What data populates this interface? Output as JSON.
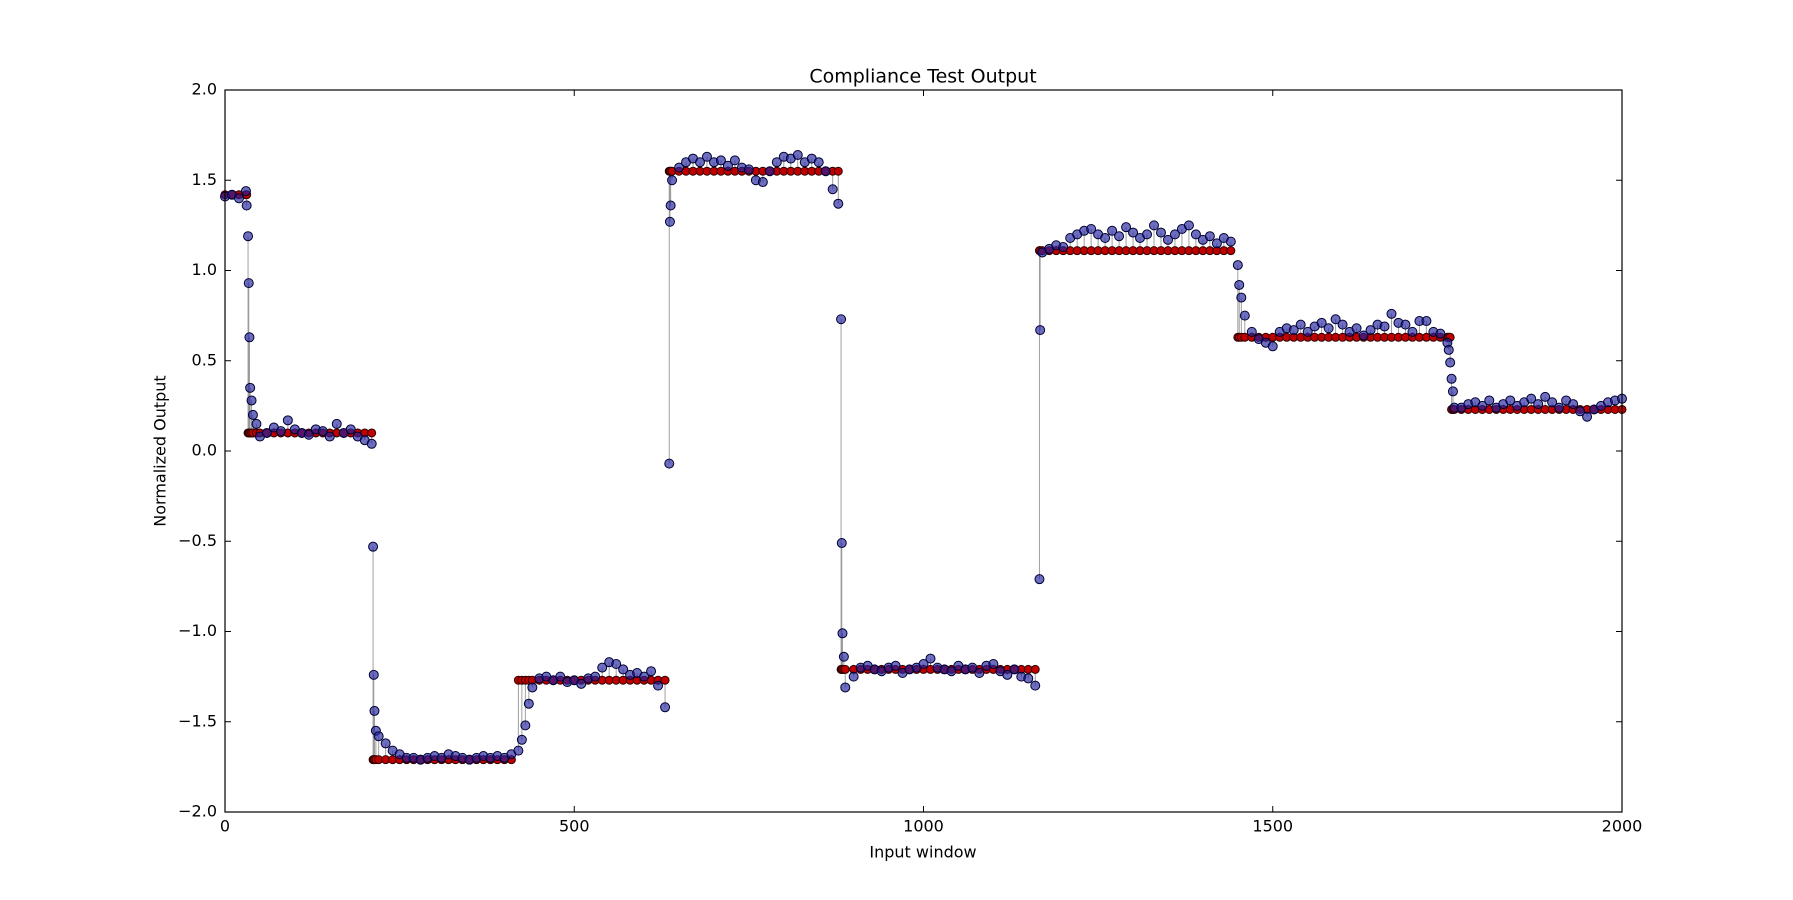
{
  "chart_data": {
    "type": "stem-scatter",
    "title": "Compliance Test Output",
    "x_label": "Input window",
    "y_label": "Normalized Output",
    "xlim": [
      0,
      2000
    ],
    "ylim": [
      -2,
      2
    ],
    "xticks": [
      0,
      500,
      1000,
      1500,
      2000
    ],
    "yticks": [
      {
        "value": -2,
        "label": "−2.0"
      },
      {
        "value": -1.5,
        "label": "−1.5"
      },
      {
        "value": -1,
        "label": "−1.0"
      },
      {
        "value": -0.5,
        "label": "−0.5"
      },
      {
        "value": 0,
        "label": "0.0"
      },
      {
        "value": 0.5,
        "label": "0.5"
      },
      {
        "value": 1,
        "label": "1.0"
      },
      {
        "value": 1.5,
        "label": "1.5"
      },
      {
        "value": 2,
        "label": "2.0"
      }
    ],
    "stem_color": "#888888",
    "x": [
      0,
      10,
      20,
      30,
      31,
      33,
      34,
      35,
      36,
      38,
      40,
      45,
      50,
      60,
      70,
      80,
      90,
      100,
      110,
      120,
      130,
      140,
      150,
      160,
      170,
      180,
      190,
      200,
      210,
      212,
      213,
      214,
      216,
      220,
      230,
      240,
      250,
      260,
      270,
      280,
      290,
      300,
      310,
      320,
      330,
      340,
      350,
      360,
      370,
      380,
      390,
      400,
      410,
      420,
      425,
      430,
      435,
      440,
      450,
      460,
      470,
      480,
      490,
      500,
      510,
      520,
      530,
      540,
      550,
      560,
      570,
      580,
      590,
      600,
      610,
      620,
      630,
      636,
      637,
      638,
      640,
      650,
      660,
      670,
      680,
      690,
      700,
      710,
      720,
      730,
      740,
      750,
      760,
      770,
      780,
      790,
      800,
      810,
      820,
      830,
      840,
      850,
      860,
      870,
      878,
      882,
      883,
      884,
      886,
      888,
      900,
      910,
      920,
      930,
      940,
      950,
      960,
      970,
      980,
      990,
      1000,
      1010,
      1020,
      1030,
      1040,
      1050,
      1060,
      1070,
      1080,
      1090,
      1100,
      1110,
      1120,
      1130,
      1140,
      1150,
      1160,
      1166,
      1167,
      1170,
      1180,
      1190,
      1200,
      1210,
      1220,
      1230,
      1240,
      1250,
      1260,
      1270,
      1280,
      1290,
      1300,
      1310,
      1320,
      1330,
      1340,
      1350,
      1360,
      1370,
      1380,
      1390,
      1400,
      1410,
      1420,
      1430,
      1440,
      1450,
      1452,
      1455,
      1460,
      1470,
      1480,
      1490,
      1500,
      1510,
      1520,
      1530,
      1540,
      1550,
      1560,
      1570,
      1580,
      1590,
      1600,
      1610,
      1620,
      1630,
      1640,
      1650,
      1660,
      1670,
      1680,
      1690,
      1700,
      1710,
      1720,
      1730,
      1740,
      1750,
      1752,
      1754,
      1756,
      1758,
      1760,
      1770,
      1780,
      1790,
      1800,
      1810,
      1820,
      1830,
      1840,
      1850,
      1860,
      1870,
      1880,
      1890,
      1900,
      1910,
      1920,
      1930,
      1940,
      1950,
      1960,
      1970,
      1980,
      1990,
      2000
    ],
    "series": [
      {
        "color": "#c00000",
        "edge": "#300000",
        "values": [
          1.42,
          1.42,
          1.42,
          1.42,
          1.42,
          0.1,
          0.1,
          0.1,
          0.1,
          0.1,
          0.1,
          0.1,
          0.1,
          0.1,
          0.1,
          0.1,
          0.1,
          0.1,
          0.1,
          0.1,
          0.1,
          0.1,
          0.1,
          0.1,
          0.1,
          0.1,
          0.1,
          0.1,
          0.1,
          -1.71,
          -1.71,
          -1.71,
          -1.71,
          -1.71,
          -1.71,
          -1.71,
          -1.71,
          -1.71,
          -1.71,
          -1.71,
          -1.71,
          -1.71,
          -1.71,
          -1.71,
          -1.71,
          -1.71,
          -1.71,
          -1.71,
          -1.71,
          -1.71,
          -1.71,
          -1.71,
          -1.71,
          -1.27,
          -1.27,
          -1.27,
          -1.27,
          -1.27,
          -1.27,
          -1.27,
          -1.27,
          -1.27,
          -1.27,
          -1.27,
          -1.27,
          -1.27,
          -1.27,
          -1.27,
          -1.27,
          -1.27,
          -1.27,
          -1.27,
          -1.27,
          -1.27,
          -1.27,
          -1.27,
          -1.27,
          1.55,
          1.55,
          1.55,
          1.55,
          1.55,
          1.55,
          1.55,
          1.55,
          1.55,
          1.55,
          1.55,
          1.55,
          1.55,
          1.55,
          1.55,
          1.55,
          1.55,
          1.55,
          1.55,
          1.55,
          1.55,
          1.55,
          1.55,
          1.55,
          1.55,
          1.55,
          1.55,
          1.55,
          -1.21,
          -1.21,
          -1.21,
          -1.21,
          -1.21,
          -1.21,
          -1.21,
          -1.21,
          -1.21,
          -1.21,
          -1.21,
          -1.21,
          -1.21,
          -1.21,
          -1.21,
          -1.21,
          -1.21,
          -1.21,
          -1.21,
          -1.21,
          -1.21,
          -1.21,
          -1.21,
          -1.21,
          -1.21,
          -1.21,
          -1.21,
          -1.21,
          -1.21,
          -1.21,
          -1.21,
          -1.21,
          1.11,
          1.11,
          1.11,
          1.11,
          1.11,
          1.11,
          1.11,
          1.11,
          1.11,
          1.11,
          1.11,
          1.11,
          1.11,
          1.11,
          1.11,
          1.11,
          1.11,
          1.11,
          1.11,
          1.11,
          1.11,
          1.11,
          1.11,
          1.11,
          1.11,
          1.11,
          1.11,
          1.11,
          1.11,
          1.11,
          0.63,
          0.63,
          0.63,
          0.63,
          0.63,
          0.63,
          0.63,
          0.63,
          0.63,
          0.63,
          0.63,
          0.63,
          0.63,
          0.63,
          0.63,
          0.63,
          0.63,
          0.63,
          0.63,
          0.63,
          0.63,
          0.63,
          0.63,
          0.63,
          0.63,
          0.63,
          0.63,
          0.63,
          0.63,
          0.63,
          0.63,
          0.63,
          0.63,
          0.63,
          0.63,
          0.23,
          0.23,
          0.23,
          0.23,
          0.23,
          0.23,
          0.23,
          0.23,
          0.23,
          0.23,
          0.23,
          0.23,
          0.23,
          0.23,
          0.23,
          0.23,
          0.23,
          0.23,
          0.23,
          0.23,
          0.23,
          0.23,
          0.23,
          0.23,
          0.23,
          0.23,
          0.23
        ]
      },
      {
        "color": "#2020a0",
        "edge": "#000030",
        "values": [
          1.41,
          1.42,
          1.4,
          1.44,
          1.36,
          1.19,
          0.93,
          0.63,
          0.35,
          0.28,
          0.2,
          0.15,
          0.08,
          0.1,
          0.13,
          0.11,
          0.17,
          0.12,
          0.1,
          0.09,
          0.12,
          0.11,
          0.08,
          0.15,
          0.1,
          0.12,
          0.08,
          0.06,
          0.04,
          -0.53,
          -1.24,
          -1.44,
          -1.55,
          -1.58,
          -1.62,
          -1.66,
          -1.68,
          -1.7,
          -1.7,
          -1.71,
          -1.7,
          -1.69,
          -1.7,
          -1.68,
          -1.69,
          -1.7,
          -1.71,
          -1.7,
          -1.69,
          -1.7,
          -1.69,
          -1.7,
          -1.68,
          -1.66,
          -1.6,
          -1.52,
          -1.4,
          -1.31,
          -1.26,
          -1.25,
          -1.27,
          -1.25,
          -1.28,
          -1.27,
          -1.29,
          -1.26,
          -1.25,
          -1.2,
          -1.17,
          -1.18,
          -1.21,
          -1.24,
          -1.23,
          -1.25,
          -1.22,
          -1.3,
          -1.42,
          -0.07,
          1.27,
          1.36,
          1.5,
          1.57,
          1.6,
          1.62,
          1.6,
          1.63,
          1.6,
          1.61,
          1.58,
          1.61,
          1.57,
          1.56,
          1.5,
          1.49,
          1.55,
          1.6,
          1.63,
          1.62,
          1.64,
          1.6,
          1.62,
          1.6,
          1.55,
          1.45,
          1.37,
          0.73,
          -0.51,
          -1.01,
          -1.14,
          -1.31,
          -1.25,
          -1.2,
          -1.19,
          -1.21,
          -1.22,
          -1.2,
          -1.19,
          -1.23,
          -1.21,
          -1.2,
          -1.18,
          -1.15,
          -1.2,
          -1.21,
          -1.22,
          -1.19,
          -1.21,
          -1.2,
          -1.23,
          -1.19,
          -1.18,
          -1.22,
          -1.24,
          -1.21,
          -1.25,
          -1.26,
          -1.3,
          -0.71,
          0.67,
          1.1,
          1.12,
          1.14,
          1.13,
          1.18,
          1.2,
          1.22,
          1.23,
          1.2,
          1.18,
          1.22,
          1.19,
          1.24,
          1.21,
          1.18,
          1.2,
          1.25,
          1.21,
          1.17,
          1.2,
          1.23,
          1.25,
          1.2,
          1.17,
          1.19,
          1.15,
          1.18,
          1.16,
          1.03,
          0.92,
          0.85,
          0.75,
          0.66,
          0.62,
          0.6,
          0.58,
          0.66,
          0.68,
          0.67,
          0.7,
          0.66,
          0.69,
          0.71,
          0.68,
          0.73,
          0.7,
          0.66,
          0.68,
          0.64,
          0.67,
          0.7,
          0.69,
          0.76,
          0.71,
          0.7,
          0.66,
          0.72,
          0.72,
          0.66,
          0.65,
          0.6,
          0.56,
          0.49,
          0.4,
          0.33,
          0.24,
          0.24,
          0.26,
          0.27,
          0.25,
          0.28,
          0.24,
          0.26,
          0.28,
          0.25,
          0.27,
          0.29,
          0.26,
          0.3,
          0.27,
          0.24,
          0.28,
          0.26,
          0.22,
          0.19,
          0.23,
          0.25,
          0.27,
          0.28,
          0.29
        ]
      }
    ]
  }
}
